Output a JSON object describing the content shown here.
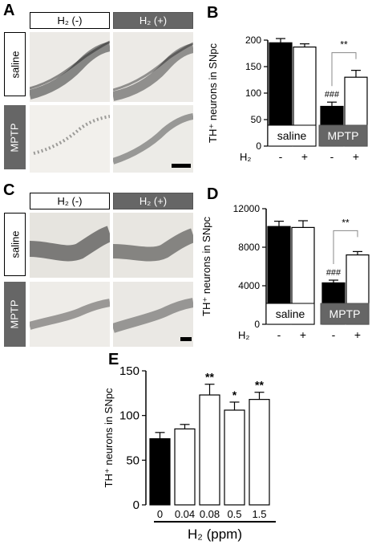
{
  "panels": {
    "A": {
      "letter": "A",
      "headers": {
        "neg": "H₂ (-)",
        "pos": "H₂ (+)"
      },
      "rows": [
        "saline",
        "MPTP"
      ]
    },
    "C": {
      "letter": "C",
      "headers": {
        "neg": "H₂ (-)",
        "pos": "H₂ (+)"
      },
      "rows": [
        "saline",
        "MPTP"
      ]
    }
  },
  "chart_data": [
    {
      "panel": "B",
      "type": "bar",
      "ylabel": "TH⁺ neurons in SNpc",
      "ylim": [
        0,
        200
      ],
      "yticks": [
        "0",
        "50",
        "100",
        "150",
        "200"
      ],
      "groups": [
        "saline",
        "MPTP"
      ],
      "h2_row_label": "H₂",
      "h2_states": [
        "-",
        "+",
        "-",
        "+"
      ],
      "values": [
        195,
        187,
        75,
        130
      ],
      "errors": [
        8,
        6,
        8,
        13
      ],
      "colors": [
        "#000000",
        "#ffffff",
        "#000000",
        "#ffffff"
      ],
      "annotations": {
        "hash": "###",
        "sig": "**"
      }
    },
    {
      "panel": "D",
      "type": "bar",
      "ylabel": "TH⁺ neurons in SNpc",
      "ylim": [
        0,
        12000
      ],
      "yticks": [
        "0",
        "4000",
        "8000",
        "12000"
      ],
      "groups": [
        "saline",
        "MPTP"
      ],
      "h2_row_label": "H₂",
      "h2_states": [
        "-",
        "+",
        "-",
        "+"
      ],
      "values": [
        10150,
        10050,
        4300,
        7200
      ],
      "errors": [
        550,
        700,
        280,
        350
      ],
      "colors": [
        "#000000",
        "#ffffff",
        "#000000",
        "#ffffff"
      ],
      "annotations": {
        "hash": "###",
        "sig": "**"
      }
    },
    {
      "panel": "E",
      "type": "bar",
      "ylabel": "TH⁺ neurons in SNpc",
      "xlabel": "H₂ (ppm)",
      "ylim": [
        0,
        150
      ],
      "yticks": [
        "0",
        "50",
        "100",
        "150"
      ],
      "categories": [
        "0",
        "0.04",
        "0.08",
        "0.5",
        "1.5"
      ],
      "values": [
        74,
        85,
        123,
        106,
        118
      ],
      "errors": [
        7,
        5,
        12,
        9,
        8
      ],
      "colors": [
        "#000000",
        "#ffffff",
        "#ffffff",
        "#ffffff",
        "#ffffff"
      ],
      "sig": [
        "",
        "",
        "**",
        "*",
        "**"
      ]
    }
  ]
}
